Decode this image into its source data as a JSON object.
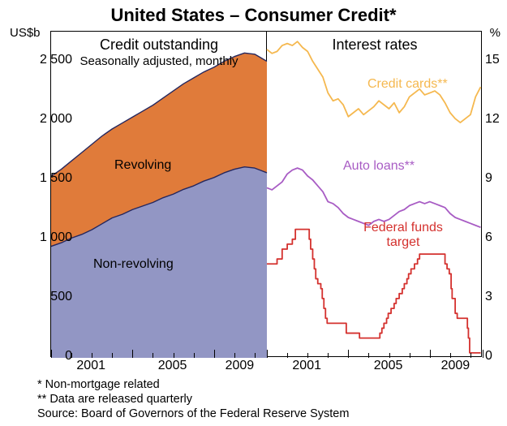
{
  "title": "United States – Consumer Credit*",
  "left_axis_label": "US$b",
  "right_axis_label": "%",
  "panels": {
    "left": {
      "title": "Credit outstanding",
      "subtitle": "Seasonally adjusted, monthly"
    },
    "right": {
      "title": "Interest rates"
    }
  },
  "left_y": {
    "min": 0,
    "max": 2750,
    "ticks": [
      0,
      500,
      1000,
      1500,
      2000,
      2500
    ],
    "tick_labels": [
      "0",
      "500",
      "1 000",
      "1 500",
      "2 000",
      "2 500"
    ]
  },
  "right_y": {
    "min": 0,
    "max": 16.5,
    "ticks": [
      0,
      3,
      6,
      9,
      12,
      15
    ]
  },
  "x": {
    "min": 1999,
    "max": 2009.6,
    "tick_years": [
      2001,
      2005,
      2009
    ],
    "tick_labels": [
      "2001",
      "2005",
      "2009"
    ],
    "major_ticks": [
      1999,
      2003,
      2007,
      2009.6
    ],
    "minor_ticks": [
      2000,
      2001,
      2002,
      2004,
      2005,
      2006,
      2008,
      2009
    ]
  },
  "colors": {
    "revolving_fill": "#e07b3a",
    "nonrevolving_fill": "#9296c4",
    "area_stroke": "#25275e",
    "credit_cards": "#f5b84f",
    "auto_loans": "#a85cc4",
    "fed_funds": "#d4312e",
    "text": "#000000"
  },
  "series_labels": {
    "revolving": "Revolving",
    "nonrevolving": "Non-revolving",
    "credit_cards": "Credit cards**",
    "auto_loans": "Auto loans**",
    "fed_funds": "Federal funds target"
  },
  "footnotes": [
    "*   Non-mortgage related",
    "**  Data are released quarterly",
    "Source: Board of Governors of the Federal Reserve System"
  ],
  "area_non_revolving": [
    [
      1999.0,
      940
    ],
    [
      1999.5,
      970
    ],
    [
      2000.0,
      1010
    ],
    [
      2000.5,
      1040
    ],
    [
      2001.0,
      1080
    ],
    [
      2001.5,
      1130
    ],
    [
      2002.0,
      1180
    ],
    [
      2002.5,
      1210
    ],
    [
      2003.0,
      1250
    ],
    [
      2003.5,
      1280
    ],
    [
      2004.0,
      1310
    ],
    [
      2004.5,
      1350
    ],
    [
      2005.0,
      1380
    ],
    [
      2005.5,
      1420
    ],
    [
      2006.0,
      1450
    ],
    [
      2006.5,
      1490
    ],
    [
      2007.0,
      1520
    ],
    [
      2007.5,
      1560
    ],
    [
      2008.0,
      1590
    ],
    [
      2008.5,
      1610
    ],
    [
      2009.0,
      1600
    ],
    [
      2009.3,
      1580
    ],
    [
      2009.6,
      1560
    ]
  ],
  "area_total": [
    [
      1999.0,
      1530
    ],
    [
      1999.5,
      1590
    ],
    [
      2000.0,
      1660
    ],
    [
      2000.5,
      1730
    ],
    [
      2001.0,
      1800
    ],
    [
      2001.5,
      1870
    ],
    [
      2002.0,
      1930
    ],
    [
      2002.5,
      1980
    ],
    [
      2003.0,
      2030
    ],
    [
      2003.5,
      2080
    ],
    [
      2004.0,
      2130
    ],
    [
      2004.5,
      2190
    ],
    [
      2005.0,
      2250
    ],
    [
      2005.5,
      2310
    ],
    [
      2006.0,
      2360
    ],
    [
      2006.5,
      2410
    ],
    [
      2007.0,
      2450
    ],
    [
      2007.5,
      2500
    ],
    [
      2008.0,
      2540
    ],
    [
      2008.5,
      2570
    ],
    [
      2009.0,
      2560
    ],
    [
      2009.3,
      2530
    ],
    [
      2009.6,
      2500
    ]
  ],
  "credit_cards_series": [
    [
      1999.0,
      15.6
    ],
    [
      1999.25,
      15.4
    ],
    [
      1999.5,
      15.5
    ],
    [
      1999.75,
      15.8
    ],
    [
      2000.0,
      15.9
    ],
    [
      2000.25,
      15.8
    ],
    [
      2000.5,
      16.0
    ],
    [
      2000.75,
      15.7
    ],
    [
      2001.0,
      15.5
    ],
    [
      2001.25,
      15.0
    ],
    [
      2001.5,
      14.6
    ],
    [
      2001.75,
      14.2
    ],
    [
      2002.0,
      13.4
    ],
    [
      2002.25,
      13.0
    ],
    [
      2002.5,
      13.1
    ],
    [
      2002.75,
      12.8
    ],
    [
      2003.0,
      12.2
    ],
    [
      2003.25,
      12.4
    ],
    [
      2003.5,
      12.6
    ],
    [
      2003.75,
      12.3
    ],
    [
      2004.0,
      12.5
    ],
    [
      2004.25,
      12.7
    ],
    [
      2004.5,
      13.0
    ],
    [
      2004.75,
      12.8
    ],
    [
      2005.0,
      12.6
    ],
    [
      2005.25,
      12.9
    ],
    [
      2005.5,
      12.4
    ],
    [
      2005.75,
      12.7
    ],
    [
      2006.0,
      13.2
    ],
    [
      2006.25,
      13.4
    ],
    [
      2006.5,
      13.6
    ],
    [
      2006.75,
      13.3
    ],
    [
      2007.0,
      13.4
    ],
    [
      2007.25,
      13.5
    ],
    [
      2007.5,
      13.3
    ],
    [
      2007.75,
      12.9
    ],
    [
      2008.0,
      12.4
    ],
    [
      2008.25,
      12.1
    ],
    [
      2008.5,
      11.9
    ],
    [
      2008.75,
      12.1
    ],
    [
      2009.0,
      12.3
    ],
    [
      2009.25,
      13.2
    ],
    [
      2009.5,
      13.7
    ]
  ],
  "auto_loans_series": [
    [
      1999.0,
      8.6
    ],
    [
      1999.25,
      8.5
    ],
    [
      1999.5,
      8.7
    ],
    [
      1999.75,
      8.9
    ],
    [
      2000.0,
      9.3
    ],
    [
      2000.25,
      9.5
    ],
    [
      2000.5,
      9.6
    ],
    [
      2000.75,
      9.5
    ],
    [
      2001.0,
      9.2
    ],
    [
      2001.25,
      9.0
    ],
    [
      2001.5,
      8.7
    ],
    [
      2001.75,
      8.4
    ],
    [
      2002.0,
      7.9
    ],
    [
      2002.25,
      7.8
    ],
    [
      2002.5,
      7.6
    ],
    [
      2002.75,
      7.3
    ],
    [
      2003.0,
      7.1
    ],
    [
      2003.25,
      7.0
    ],
    [
      2003.5,
      6.9
    ],
    [
      2003.75,
      6.8
    ],
    [
      2004.0,
      6.7
    ],
    [
      2004.25,
      6.9
    ],
    [
      2004.5,
      7.0
    ],
    [
      2004.75,
      6.9
    ],
    [
      2005.0,
      7.0
    ],
    [
      2005.25,
      7.2
    ],
    [
      2005.5,
      7.4
    ],
    [
      2005.75,
      7.5
    ],
    [
      2006.0,
      7.7
    ],
    [
      2006.25,
      7.8
    ],
    [
      2006.5,
      7.9
    ],
    [
      2006.75,
      7.8
    ],
    [
      2007.0,
      7.9
    ],
    [
      2007.25,
      7.8
    ],
    [
      2007.5,
      7.7
    ],
    [
      2007.75,
      7.6
    ],
    [
      2008.0,
      7.3
    ],
    [
      2008.25,
      7.1
    ],
    [
      2008.5,
      7.0
    ],
    [
      2008.75,
      6.9
    ],
    [
      2009.0,
      6.8
    ],
    [
      2009.25,
      6.7
    ],
    [
      2009.5,
      6.6
    ]
  ],
  "fed_funds_series": [
    [
      1999.0,
      4.75
    ],
    [
      1999.5,
      5.0
    ],
    [
      1999.75,
      5.5
    ],
    [
      2000.0,
      5.75
    ],
    [
      2000.25,
      6.0
    ],
    [
      2000.4,
      6.5
    ],
    [
      2001.0,
      6.5
    ],
    [
      2001.08,
      6.0
    ],
    [
      2001.15,
      5.5
    ],
    [
      2001.25,
      5.0
    ],
    [
      2001.33,
      4.5
    ],
    [
      2001.4,
      4.0
    ],
    [
      2001.5,
      3.75
    ],
    [
      2001.65,
      3.5
    ],
    [
      2001.72,
      3.0
    ],
    [
      2001.8,
      2.5
    ],
    [
      2001.88,
      2.0
    ],
    [
      2001.96,
      1.75
    ],
    [
      2002.88,
      1.75
    ],
    [
      2002.9,
      1.25
    ],
    [
      2003.5,
      1.25
    ],
    [
      2003.55,
      1.0
    ],
    [
      2004.5,
      1.0
    ],
    [
      2004.55,
      1.25
    ],
    [
      2004.65,
      1.5
    ],
    [
      2004.75,
      1.75
    ],
    [
      2004.88,
      2.0
    ],
    [
      2004.96,
      2.25
    ],
    [
      2005.1,
      2.5
    ],
    [
      2005.25,
      2.75
    ],
    [
      2005.35,
      3.0
    ],
    [
      2005.5,
      3.25
    ],
    [
      2005.65,
      3.5
    ],
    [
      2005.75,
      3.75
    ],
    [
      2005.88,
      4.0
    ],
    [
      2005.96,
      4.25
    ],
    [
      2006.08,
      4.5
    ],
    [
      2006.25,
      4.75
    ],
    [
      2006.4,
      5.0
    ],
    [
      2006.5,
      5.25
    ],
    [
      2007.7,
      5.25
    ],
    [
      2007.75,
      4.75
    ],
    [
      2007.85,
      4.5
    ],
    [
      2007.96,
      4.25
    ],
    [
      2008.05,
      3.5
    ],
    [
      2008.1,
      3.0
    ],
    [
      2008.25,
      2.25
    ],
    [
      2008.35,
      2.0
    ],
    [
      2008.8,
      2.0
    ],
    [
      2008.85,
      1.5
    ],
    [
      2008.9,
      1.0
    ],
    [
      2008.96,
      0.25
    ],
    [
      2009.5,
      0.25
    ]
  ]
}
